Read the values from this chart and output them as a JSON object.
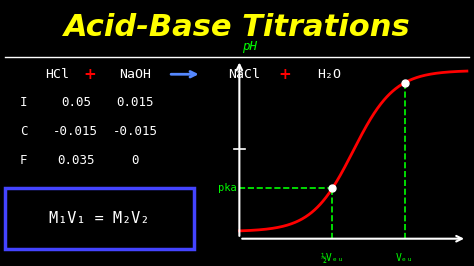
{
  "title": "Acid-Base Titrations",
  "title_color": "#FFFF00",
  "bg_color": "#000000",
  "equation": {
    "hcl": "HCl",
    "plus1": "+",
    "naoh": "NaOH",
    "nacl": "NaCl",
    "plus2": "+",
    "h2o": "H₂O"
  },
  "ice_table": {
    "headers": [
      "I",
      "C",
      "F"
    ],
    "hcl_vals": [
      "0.05",
      "-0.015",
      "0.035"
    ],
    "naoh_vals": [
      "0.015",
      "-0.015",
      "0"
    ]
  },
  "formula": "M₁V₁ = M₂V₂",
  "graph": {
    "xlabel_half": "½Vₑᵤ",
    "xlabel_eq": "Vₑᵤ",
    "ylabel": "pH",
    "pka_label": "pka"
  },
  "white_color": "#FFFFFF",
  "green_color": "#00FF00",
  "red_color": "#FF0000",
  "blue_color": "#4444FF",
  "yellow_color": "#FFFF00",
  "arrow_color": "#5588FF"
}
